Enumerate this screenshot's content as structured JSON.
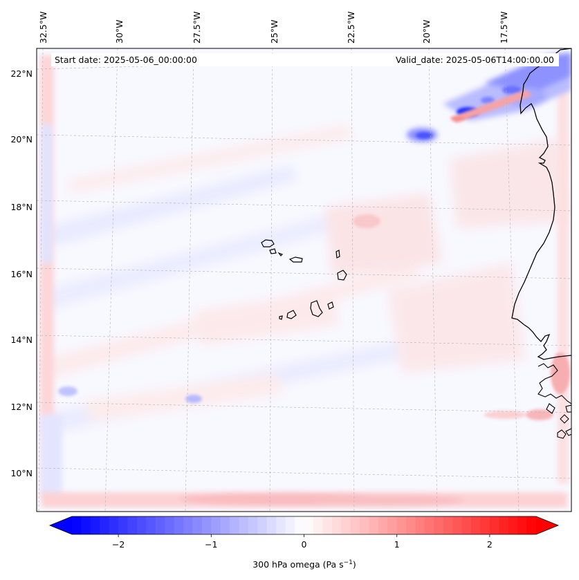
{
  "map": {
    "start_date": "Start date: 2025-05-06_00:00:00",
    "valid_date": "Valid_date: 2025-05-06T14:00:00.00",
    "lon_labels": [
      "32.5°W",
      "30°W",
      "27.5°W",
      "25°W",
      "22.5°W",
      "20°W",
      "17.5°W"
    ],
    "lat_labels": [
      "22°N",
      "20°N",
      "18°N",
      "16°N",
      "14°N",
      "12°N",
      "10°N"
    ],
    "field": "300 hPa omega",
    "units": "Pa s-1"
  },
  "colorbar": {
    "label_prefix": "300 hPa omega (Pa s",
    "label_exponent": "−1",
    "label_suffix": ")",
    "ticks": [
      "−2",
      "−1",
      "0",
      "1",
      "2"
    ],
    "min": -2.5,
    "max": 2.5,
    "colors": {
      "negative": "#0000ff",
      "zero": "#ffffff",
      "positive": "#ff0000"
    }
  },
  "colors": {
    "coastline": "#000000",
    "gridline": "#b0b0b0"
  }
}
